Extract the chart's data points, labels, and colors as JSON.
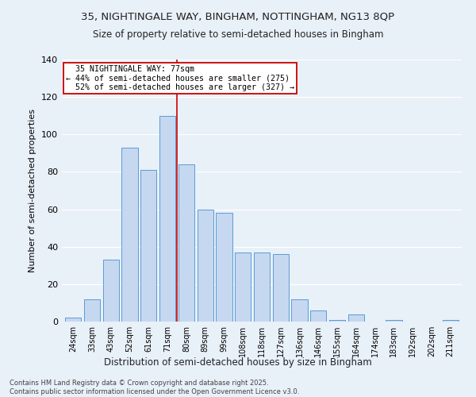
{
  "title1": "35, NIGHTINGALE WAY, BINGHAM, NOTTINGHAM, NG13 8QP",
  "title2": "Size of property relative to semi-detached houses in Bingham",
  "xlabel": "Distribution of semi-detached houses by size in Bingham",
  "ylabel": "Number of semi-detached properties",
  "categories": [
    "24sqm",
    "33sqm",
    "43sqm",
    "52sqm",
    "61sqm",
    "71sqm",
    "80sqm",
    "89sqm",
    "99sqm",
    "108sqm",
    "118sqm",
    "127sqm",
    "136sqm",
    "146sqm",
    "155sqm",
    "164sqm",
    "174sqm",
    "183sqm",
    "192sqm",
    "202sqm",
    "211sqm"
  ],
  "values": [
    2,
    12,
    33,
    93,
    81,
    110,
    84,
    60,
    58,
    37,
    37,
    36,
    12,
    6,
    1,
    4,
    0,
    1,
    0,
    0,
    1
  ],
  "bar_color": "#c5d8f0",
  "bar_edge_color": "#5b9bd5",
  "background_color": "#e8f0f8",
  "grid_color": "#ffffff",
  "property_label": "35 NIGHTINGALE WAY: 77sqm",
  "pct_smaller": 44,
  "n_smaller": 275,
  "pct_larger": 52,
  "n_larger": 327,
  "vline_color": "#cc0000",
  "vline_x_index": 6,
  "annotation_box_color": "#ffffff",
  "annotation_border_color": "#cc0000",
  "ylim": [
    0,
    140
  ],
  "yticks": [
    0,
    20,
    40,
    60,
    80,
    100,
    120,
    140
  ],
  "footer1": "Contains HM Land Registry data © Crown copyright and database right 2025.",
  "footer2": "Contains public sector information licensed under the Open Government Licence v3.0."
}
